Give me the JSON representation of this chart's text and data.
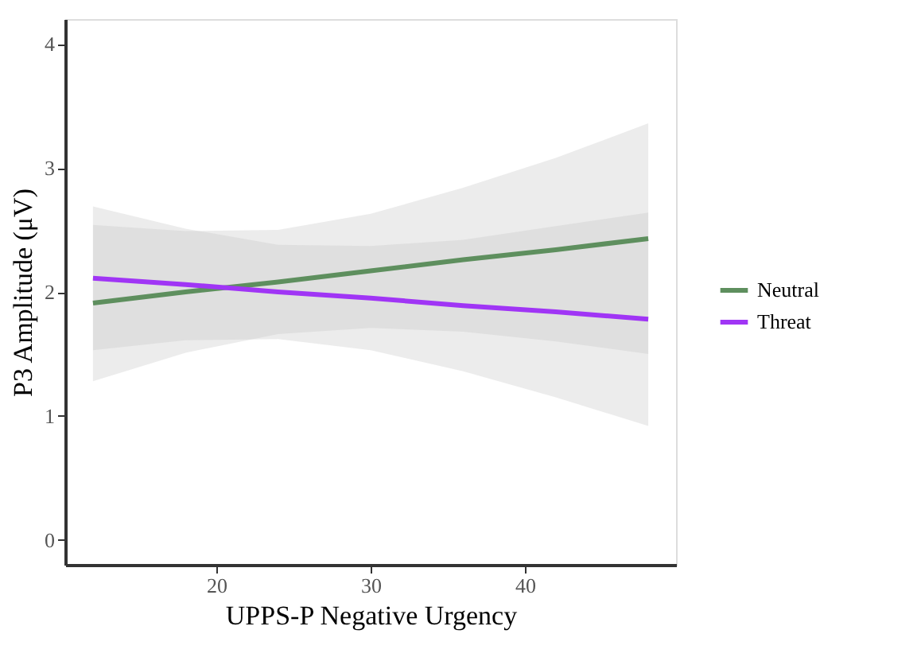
{
  "chart_data": {
    "type": "line",
    "xlabel": "UPPS-P Negative Urgency",
    "ylabel": "P3 Amplitude (μV)",
    "xlim": [
      10.2,
      49.8
    ],
    "ylim": [
      -0.2,
      4.2
    ],
    "xticks": [
      20,
      30,
      40
    ],
    "yticks": [
      0,
      1,
      2,
      3,
      4
    ],
    "grid": false,
    "legend": "right",
    "marker": "none",
    "line_style": "solid",
    "series": [
      {
        "name": "Neutral",
        "color": "#5e8f5e",
        "x": [
          12,
          18,
          24,
          30,
          36,
          42,
          48
        ],
        "values": [
          1.91,
          2.0,
          2.08,
          2.17,
          2.26,
          2.34,
          2.43
        ],
        "lower": [
          1.28,
          1.51,
          1.66,
          1.71,
          1.68,
          1.6,
          1.5
        ],
        "upper": [
          2.54,
          2.49,
          2.5,
          2.63,
          2.84,
          3.08,
          3.36
        ]
      },
      {
        "name": "Threat",
        "color": "#a035f5",
        "x": [
          12,
          18,
          24,
          30,
          36,
          42,
          48
        ],
        "values": [
          2.11,
          2.06,
          2.0,
          1.95,
          1.89,
          1.84,
          1.78
        ],
        "lower": [
          1.53,
          1.61,
          1.62,
          1.53,
          1.36,
          1.15,
          0.92
        ],
        "upper": [
          2.69,
          2.51,
          2.38,
          2.37,
          2.42,
          2.53,
          2.64
        ]
      }
    ]
  }
}
